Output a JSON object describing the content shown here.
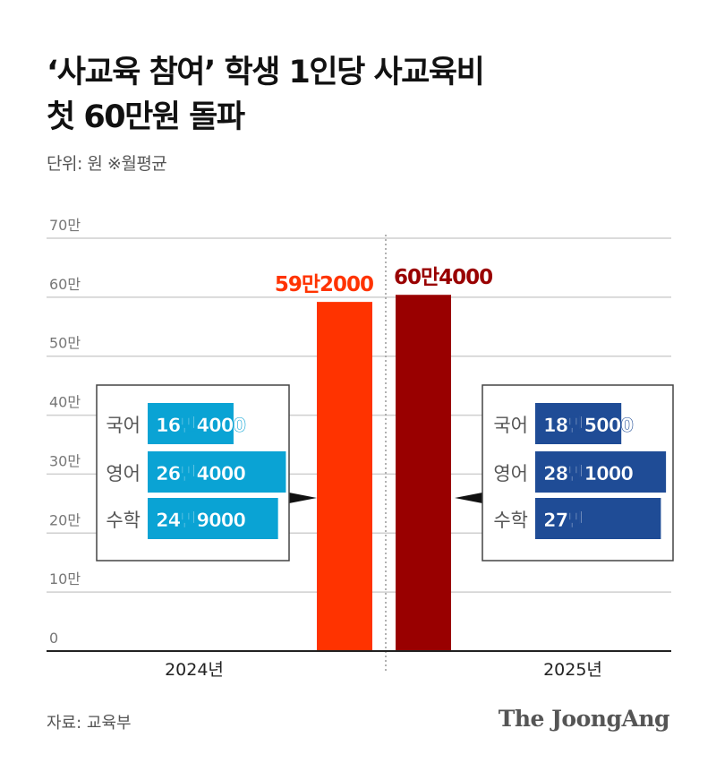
{
  "title_lines": [
    "‘사교육 참여’ 학생 1인당 사교육비",
    "첫 60만원 돌파"
  ],
  "unit_note": "단위: 원 ※월평균",
  "source": "자료: 교육부",
  "logo": "The JoongAng",
  "chart_data": {
    "type": "bar",
    "ylim": [
      0,
      70
    ],
    "y_unit": "만원",
    "yticks": [
      0,
      10,
      20,
      30,
      40,
      50,
      60,
      70
    ],
    "ytick_labels": [
      "0",
      "10만",
      "20만",
      "30만",
      "40만",
      "50만",
      "60만",
      "70만"
    ],
    "grid": true,
    "categories": [
      "2024년",
      "2025년"
    ],
    "values": [
      59.2,
      60.4
    ],
    "data_labels": [
      "59만2000",
      "60만4000"
    ],
    "colors": [
      "#ff3300",
      "#990000"
    ],
    "insets": [
      {
        "year": "2024년",
        "color": "#0aa3d4",
        "subjects": [
          "국어",
          "영어",
          "수학"
        ],
        "values": [
          16.4,
          26.4,
          24.9
        ],
        "labels": [
          "16만4000",
          "26만4000",
          "24만9000"
        ]
      },
      {
        "year": "2025년",
        "color": "#1f4c96",
        "subjects": [
          "국어",
          "영어",
          "수학"
        ],
        "values": [
          18.5,
          28.1,
          27
        ],
        "labels": [
          "18만5000",
          "28만1000",
          "27만"
        ]
      }
    ]
  }
}
